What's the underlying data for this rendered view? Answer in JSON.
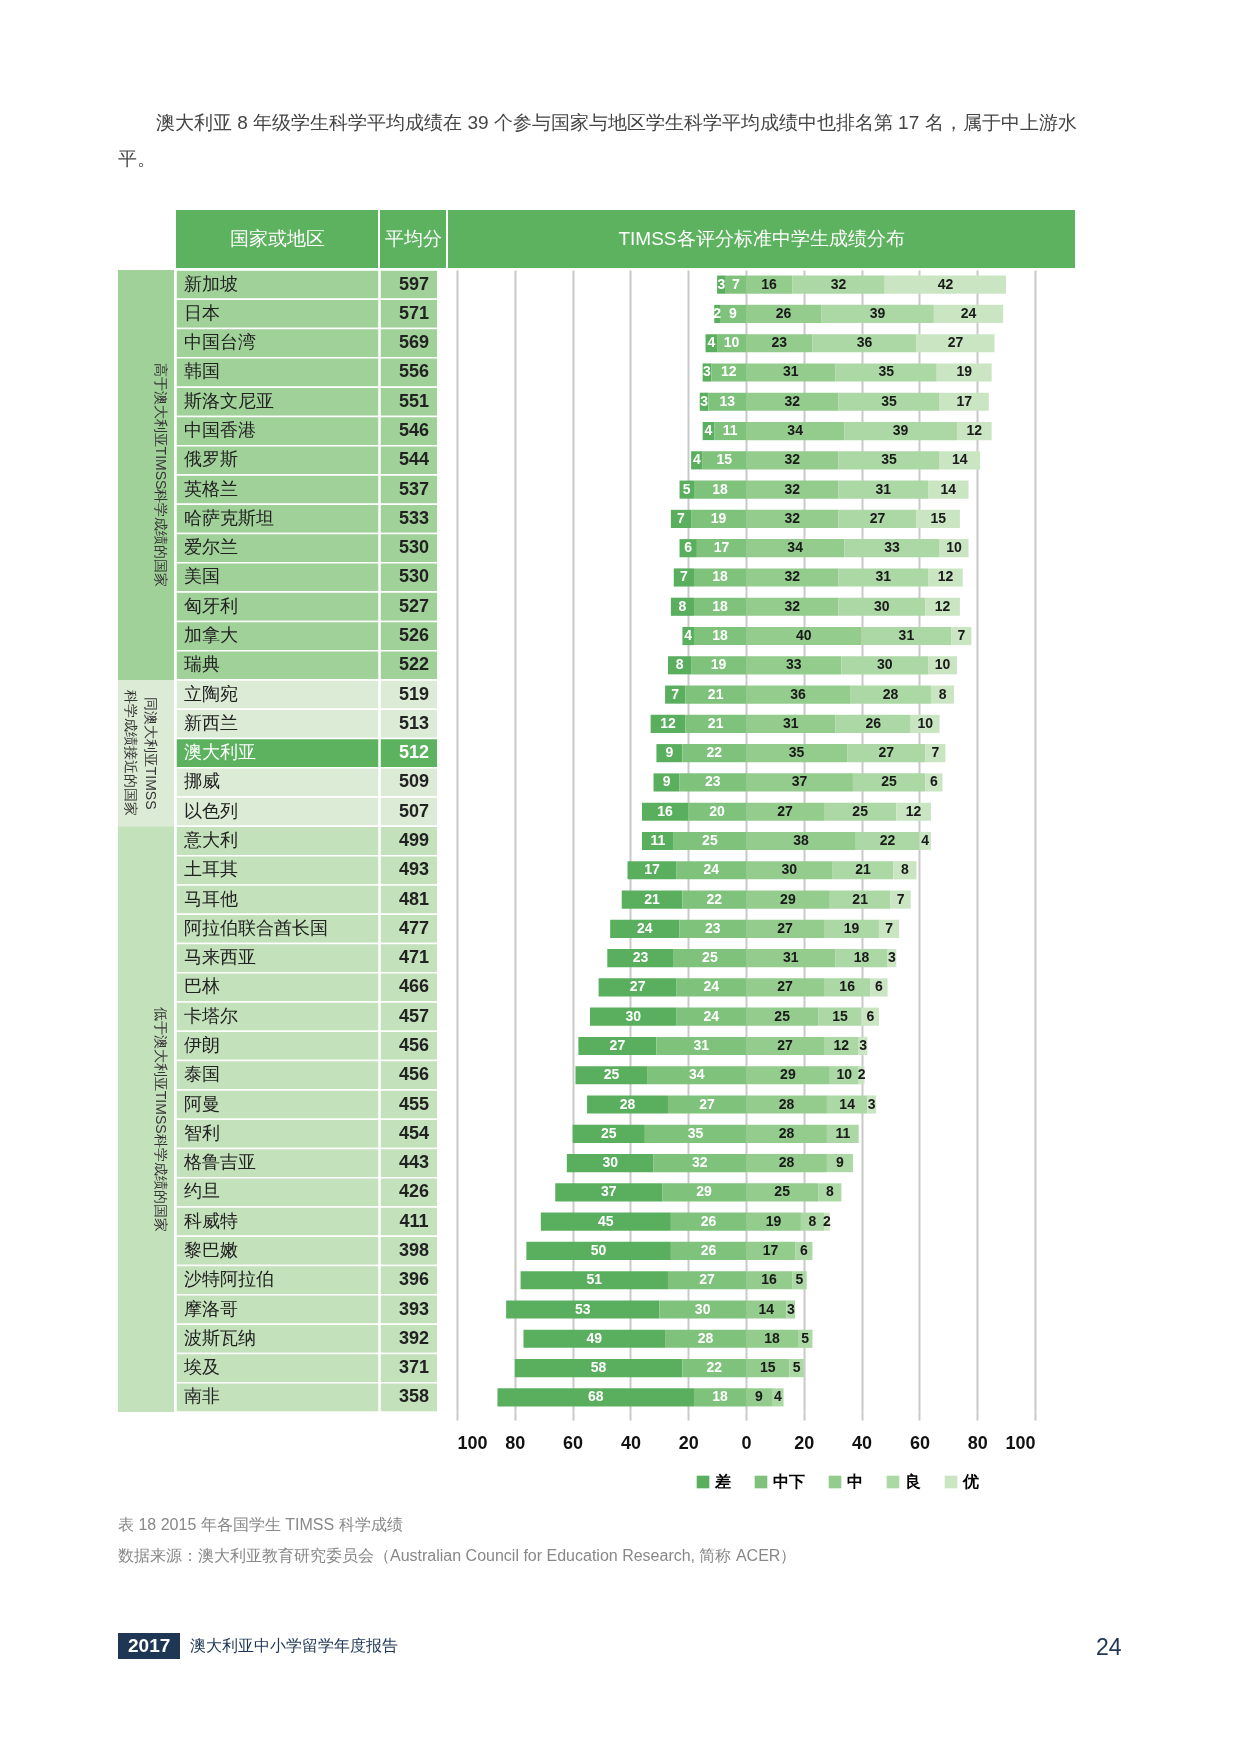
{
  "chart_data": [
    {
      "type": "other",
      "ylabel": "国家或地区",
      "xlabel": "平均分",
      "categories": [
        "新加坡",
        "日本",
        "中国台湾",
        "韩国",
        "斯洛文尼亚",
        "中国香港",
        "俄罗斯",
        "英格兰",
        "哈萨克斯坦",
        "爱尔兰",
        "美国",
        "匈牙利",
        "加拿大",
        "瑞典",
        "立陶宛",
        "新西兰",
        "澳大利亚",
        "挪威",
        "以色列",
        "意大利",
        "土耳其",
        "马耳他",
        "阿拉伯联合酋长国",
        "马来西亚",
        "巴林",
        "卡塔尔",
        "伊朗",
        "泰国",
        "阿曼",
        "智利",
        "格鲁吉亚",
        "约旦",
        "科威特",
        "黎巴嫩",
        "沙特阿拉伯",
        "摩洛哥",
        "波斯瓦纳",
        "埃及",
        "南非"
      ],
      "data_labels": true,
      "values": [
        597,
        571,
        569,
        556,
        551,
        546,
        544,
        537,
        533,
        530,
        530,
        527,
        526,
        522,
        519,
        513,
        512,
        509,
        507,
        499,
        493,
        481,
        477,
        471,
        466,
        457,
        456,
        456,
        455,
        454,
        443,
        426,
        411,
        398,
        396,
        393,
        392,
        371,
        358
      ],
      "colors": [
        "#a0d199",
        "#a0d199",
        "#a0d199",
        "#a0d199",
        "#a0d199",
        "#a0d199",
        "#a0d199",
        "#a0d199",
        "#a0d199",
        "#a0d199",
        "#a0d199",
        "#a0d199",
        "#a0d199",
        "#a0d199",
        "#dcebd6",
        "#dcebd6",
        "#5cb25f",
        "#dcebd6",
        "#dcebd6",
        "#c3e1bb",
        "#c3e1bb",
        "#c3e1bb",
        "#c3e1bb",
        "#c3e1bb",
        "#c3e1bb",
        "#c3e1bb",
        "#c3e1bb",
        "#c3e1bb",
        "#c3e1bb",
        "#c3e1bb",
        "#c3e1bb",
        "#c3e1bb",
        "#c3e1bb",
        "#c3e1bb",
        "#c3e1bb",
        "#c3e1bb",
        "#c3e1bb",
        "#c3e1bb",
        "#c3e1bb"
      ],
      "annotations": [
        "澳大利亚 8 年级学生科学平均成绩在 39 个参与国家与地区学生科学平均成绩中也排名第 17 名，属于中上游水平。",
        "高于澳大利亚TIMSS科学成绩的国家",
        "同澳大利亚TIMSS科学成绩接近的国家",
        "低于澳大利亚TIMSS科学成绩的国家"
      ]
    },
    {
      "type": "bar",
      "orientation": "horizontal",
      "title": "TIMSS各评分标准中学生成绩分布",
      "categories": [
        "新加坡",
        "日本",
        "中国台湾",
        "韩国",
        "斯洛文尼亚",
        "中国香港",
        "俄罗斯",
        "英格兰",
        "哈萨克斯坦",
        "爱尔兰",
        "美国",
        "匈牙利",
        "加拿大",
        "瑞典",
        "立陶宛",
        "新西兰",
        "澳大利亚",
        "挪威",
        "以色列",
        "意大利",
        "土耳其",
        "马耳他",
        "阿拉伯联合酋长国",
        "马来西亚",
        "巴林",
        "卡塔尔",
        "伊朗",
        "泰国",
        "阿曼",
        "智利",
        "格鲁吉亚",
        "约旦",
        "科威特",
        "黎巴嫩",
        "沙特阿拉伯",
        "摩洛哥",
        "波斯瓦纳",
        "埃及",
        "南非"
      ],
      "tick_labels": "x",
      "grid": "x",
      "legend": "bottom right",
      "data_labels": true,
      "xlim": [
        -100,
        100
      ],
      "xticks": [
        {
          "value": -100,
          "label": "100"
        },
        {
          "value": -80,
          "label": "80"
        },
        {
          "value": -60,
          "label": "60"
        },
        {
          "value": -40,
          "label": "40"
        },
        {
          "value": -20,
          "label": "20"
        },
        0,
        20,
        40,
        60,
        80,
        100
      ],
      "series": [
        {
          "name": "差",
          "color": "#5aaf5e",
          "values": [
            3,
            2,
            4,
            3,
            3,
            4,
            4,
            5,
            7,
            6,
            7,
            8,
            4,
            8,
            7,
            12,
            9,
            9,
            16,
            11,
            17,
            21,
            24,
            23,
            27,
            30,
            27,
            25,
            28,
            25,
            30,
            37,
            45,
            50,
            51,
            53,
            49,
            58,
            68
          ],
          "base": [
            -10,
            -11,
            -14,
            -15,
            -16,
            -15,
            -19,
            -23,
            -26,
            -23,
            -25,
            -26,
            -22,
            -27,
            -28,
            -33,
            -31,
            -32,
            -36,
            -36,
            -41,
            -43,
            -47,
            -48,
            -51,
            -54,
            -58,
            -59,
            -55,
            -60,
            -62,
            -66,
            -71,
            -76,
            -78,
            -83,
            -77,
            -80,
            -86
          ]
        },
        {
          "name": "中下",
          "color": "#7fc27c",
          "values": [
            7,
            9,
            10,
            12,
            13,
            11,
            15,
            18,
            19,
            17,
            18,
            18,
            18,
            19,
            21,
            21,
            22,
            23,
            20,
            25,
            24,
            22,
            23,
            25,
            24,
            24,
            31,
            34,
            27,
            35,
            32,
            29,
            26,
            26,
            27,
            30,
            28,
            22,
            18
          ],
          "base": [
            -7,
            -9,
            -10,
            -12,
            -13,
            -11,
            -15,
            -18,
            -19,
            -17,
            -18,
            -18,
            -18,
            -19,
            -21,
            -21,
            -22,
            -23,
            -20,
            -25,
            -24,
            -22,
            -23,
            -25,
            -24,
            -24,
            -31,
            -34,
            -27,
            -35,
            -32,
            -29,
            -26,
            -26,
            -27,
            -30,
            -28,
            -22,
            -18
          ]
        },
        {
          "name": "中",
          "color": "#93cc8c",
          "values": [
            16,
            26,
            23,
            31,
            32,
            34,
            32,
            32,
            32,
            34,
            32,
            32,
            40,
            33,
            36,
            31,
            35,
            37,
            27,
            38,
            30,
            29,
            27,
            31,
            27,
            25,
            27,
            29,
            28,
            28,
            28,
            25,
            19,
            17,
            16,
            14,
            18,
            15,
            9
          ],
          "base": [
            0,
            0,
            0,
            0,
            0,
            0,
            0,
            0,
            0,
            0,
            0,
            0,
            0,
            0,
            0,
            0,
            0,
            0,
            0,
            0,
            0,
            0,
            0,
            0,
            0,
            0,
            0,
            0,
            0,
            0,
            0,
            0,
            0,
            0,
            0,
            0,
            0,
            0,
            0
          ]
        },
        {
          "name": "良",
          "color": "#abd8a4",
          "values": [
            32,
            39,
            36,
            35,
            35,
            39,
            35,
            31,
            27,
            33,
            31,
            30,
            31,
            30,
            28,
            26,
            27,
            25,
            25,
            22,
            21,
            21,
            19,
            18,
            16,
            15,
            12,
            10,
            14,
            11,
            9,
            8,
            8,
            6,
            5,
            3,
            5,
            5,
            4
          ],
          "base": [
            16,
            26,
            23,
            31,
            32,
            34,
            32,
            32,
            32,
            34,
            32,
            32,
            40,
            33,
            36,
            31,
            35,
            37,
            27,
            38,
            30,
            29,
            27,
            31,
            27,
            25,
            27,
            29,
            28,
            28,
            28,
            25,
            19,
            17,
            16,
            14,
            18,
            15,
            9
          ]
        },
        {
          "name": "优",
          "color": "#c9e5c2",
          "values": [
            42,
            24,
            27,
            19,
            17,
            12,
            14,
            14,
            15,
            10,
            12,
            12,
            7,
            10,
            8,
            10,
            7,
            6,
            12,
            4,
            8,
            7,
            7,
            3,
            6,
            6,
            3,
            2,
            3,
            null,
            null,
            null,
            2,
            null,
            null,
            null,
            null,
            null,
            null
          ],
          "base": [
            48,
            65,
            59,
            66,
            67,
            73,
            67,
            63,
            59,
            67,
            63,
            62,
            71,
            63,
            64,
            57,
            62,
            62,
            52,
            60,
            51,
            50,
            46,
            49,
            43,
            40,
            39,
            39,
            42,
            null,
            null,
            null,
            27,
            null,
            null,
            null,
            null,
            null,
            null
          ]
        }
      ],
      "annotations": [
        "表 18 2015 年各国学生 TIMSS 科学成绩",
        "数据来源：澳大利亚教育研究委员会（Australian Council for Education Research, 简称 ACER）",
        "2017",
        "澳大利亚中小学留学年度报告",
        "24"
      ]
    }
  ]
}
